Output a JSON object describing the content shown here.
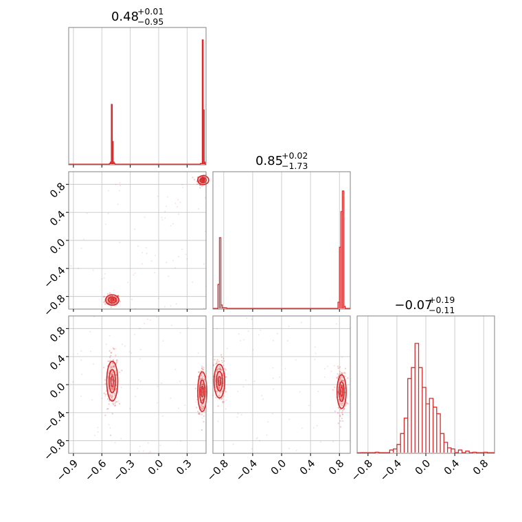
{
  "colors": {
    "accent": "#d62728",
    "grid": "#c8c8c8",
    "frame": "#808080"
  },
  "chart_data": {
    "type": "corner",
    "grid": true,
    "panels": [
      {
        "id": "hist-0",
        "type": "histogram",
        "row": 0,
        "col": 0,
        "title": {
          "value": "0.48",
          "plus": "+0.01",
          "minus": "−0.95"
        },
        "xlim": [
          -0.95,
          0.5
        ],
        "bins": [
          [
            -0.52,
            0.01
          ],
          [
            -0.51,
            0.02
          ],
          [
            -0.5,
            0.44
          ],
          [
            -0.49,
            0.17
          ],
          [
            -0.48,
            0.02
          ],
          [
            -0.47,
            0.01
          ],
          [
            0.44,
            0.01
          ],
          [
            0.45,
            0.01
          ],
          [
            0.46,
            0.91
          ],
          [
            0.47,
            0.4
          ],
          [
            0.48,
            0.02
          ]
        ],
        "bin_width": 0.01,
        "ylim": [
          0,
          1
        ]
      },
      {
        "id": "hist-1",
        "type": "histogram",
        "row": 1,
        "col": 1,
        "title": {
          "value": "0.85",
          "plus": "+0.02",
          "minus": "−1.73"
        },
        "xlim": [
          -0.95,
          0.95
        ],
        "bins": [
          [
            -0.88,
            0.18
          ],
          [
            -0.86,
            0.52
          ],
          [
            -0.84,
            0.03
          ],
          [
            -0.82,
            0.01
          ],
          [
            -0.8,
            0.01
          ],
          [
            -0.78,
            0.01
          ],
          [
            0.78,
            0.05
          ],
          [
            0.8,
            0.45
          ],
          [
            0.82,
            0.71
          ],
          [
            0.84,
            0.86
          ],
          [
            0.86,
            0.02
          ]
        ],
        "bin_width": 0.02,
        "ylim": [
          0,
          1
        ]
      },
      {
        "id": "hist-2",
        "type": "histogram",
        "row": 2,
        "col": 2,
        "title": {
          "value": "−0.07",
          "plus": "+0.19",
          "minus": "−0.11"
        },
        "xlim": [
          -0.95,
          0.95
        ],
        "bins": [
          [
            -0.95,
            0.005
          ],
          [
            -0.7,
            0.01
          ],
          [
            -0.5,
            0.03
          ],
          [
            -0.45,
            0.04
          ],
          [
            -0.4,
            0.08
          ],
          [
            -0.35,
            0.18
          ],
          [
            -0.3,
            0.32
          ],
          [
            -0.25,
            0.68
          ],
          [
            -0.2,
            0.78
          ],
          [
            -0.15,
            1.0
          ],
          [
            -0.1,
            0.78
          ],
          [
            -0.05,
            0.6
          ],
          [
            0.0,
            0.45
          ],
          [
            0.05,
            0.5
          ],
          [
            0.1,
            0.42
          ],
          [
            0.15,
            0.36
          ],
          [
            0.2,
            0.18
          ],
          [
            0.25,
            0.1
          ],
          [
            0.3,
            0.05
          ],
          [
            0.35,
            0.04
          ],
          [
            0.45,
            0.03
          ],
          [
            0.55,
            0.02
          ],
          [
            0.65,
            0.01
          ],
          [
            0.8,
            0.01
          ]
        ],
        "bin_width": 0.05,
        "ylim": [
          0,
          1.25
        ]
      },
      {
        "id": "scatter-1-0",
        "type": "2d-density",
        "row": 1,
        "col": 0,
        "xlim": [
          -0.95,
          0.5
        ],
        "ylim": [
          -0.98,
          0.98
        ],
        "clusters": [
          {
            "x": -0.49,
            "y": -0.85,
            "sx": 0.025,
            "sy": 0.025
          },
          {
            "x": 0.47,
            "y": 0.86,
            "sx": 0.02,
            "sy": 0.02
          }
        ]
      },
      {
        "id": "scatter-2-0",
        "type": "2d-density",
        "row": 2,
        "col": 0,
        "xlim": [
          -0.95,
          0.5
        ],
        "ylim": [
          -0.98,
          0.98
        ],
        "clusters": [
          {
            "x": -0.49,
            "y": 0.05,
            "sx": 0.02,
            "sy": 0.12
          },
          {
            "x": 0.46,
            "y": -0.1,
            "sx": 0.015,
            "sy": 0.12
          }
        ]
      },
      {
        "id": "scatter-2-1",
        "type": "2d-density",
        "row": 2,
        "col": 1,
        "xlim": [
          -0.95,
          0.95
        ],
        "ylim": [
          -0.98,
          0.98
        ],
        "clusters": [
          {
            "x": -0.86,
            "y": 0.05,
            "sx": 0.025,
            "sy": 0.1
          },
          {
            "x": 0.83,
            "y": -0.1,
            "sx": 0.02,
            "sy": 0.1
          }
        ]
      }
    ],
    "x_ticks": [
      [
        "−0.9",
        "−0.6",
        "−0.3",
        "0.0",
        "0.3"
      ],
      [
        "−0.8",
        "−0.4",
        "0.0",
        "0.4",
        "0.8"
      ],
      [
        "−0.8",
        "−0.4",
        "0.0",
        "0.4",
        "0.8"
      ]
    ],
    "x_tick_values": [
      [
        -0.9,
        -0.6,
        -0.3,
        0.0,
        0.3
      ],
      [
        -0.8,
        -0.4,
        0.0,
        0.4,
        0.8
      ],
      [
        -0.8,
        -0.4,
        0.0,
        0.4,
        0.8
      ]
    ],
    "y_ticks": [
      [
        "0.8",
        "0.4",
        "0.0",
        "−0.4",
        "−0.8"
      ],
      [
        "0.8",
        "0.4",
        "0.0",
        "−0.4",
        "−0.8"
      ]
    ],
    "y_tick_values": [
      [
        0.8,
        0.4,
        0.0,
        -0.4,
        -0.8
      ],
      [
        0.8,
        0.4,
        0.0,
        -0.4,
        -0.8
      ]
    ]
  }
}
